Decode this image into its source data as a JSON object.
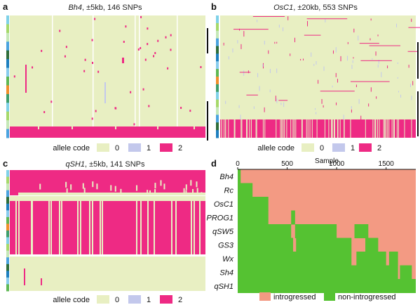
{
  "figure": {
    "colors": {
      "code0": "#e8efc2",
      "code1": "#c3c8ec",
      "code2": "#ee2a84",
      "introgressed": "#f39a83",
      "non_introgressed": "#55c232",
      "background": "#ffffff"
    },
    "panel_a": {
      "label": "a",
      "gene": "Bh4",
      "title_rest": ", ±5kb, 146 SNPs"
    },
    "panel_b": {
      "label": "b",
      "gene": "OsC1",
      "title_rest": ", ±20kb, 553 SNPs"
    },
    "panel_c": {
      "label": "c",
      "gene": "qSH1",
      "title_rest": ", ±5kb, 141 SNPs"
    },
    "panel_d": {
      "label": "d",
      "xlabel": "Sample"
    },
    "allele_legend": {
      "title": "allele code",
      "items": [
        "0",
        "1",
        "2"
      ]
    },
    "introgression_legend": {
      "items": [
        "introgressed",
        "non-introgressed"
      ]
    },
    "sample_ticks": [
      "0",
      "500",
      "1000",
      "1500"
    ]
  },
  "chart_data": [
    {
      "type": "heatmap",
      "title": "Bh4, ±5kb, 146 SNPs",
      "legend_title": "allele code",
      "legend": [
        "0",
        "1",
        "2"
      ],
      "note": "mostly code 0; dense code 2 block at bottom rows"
    },
    {
      "type": "heatmap",
      "title": "OsC1, ±20kb, 553 SNPs",
      "legend_title": "allele code",
      "legend": [
        "0",
        "1",
        "2"
      ],
      "note": "mostly code 0; dense code 2 band at bottom rows"
    },
    {
      "type": "heatmap",
      "title": "qSH1, ±5kb, 141 SNPs",
      "legend_title": "allele code",
      "legend": [
        "0",
        "1",
        "2"
      ],
      "note": "code 2 dominant in upper blocks, code 0 in lower rows"
    },
    {
      "type": "heatmap",
      "xlabel": "Sample",
      "xlim": [
        0,
        1800
      ],
      "xticks": [
        0,
        500,
        1000,
        1500
      ],
      "rows": [
        "Bh4",
        "Rc",
        "OsC1",
        "PROG1",
        "qSW5",
        "GS3",
        "Wx",
        "Sh4",
        "qSH1"
      ],
      "legend": [
        "introgressed",
        "non-introgressed"
      ],
      "non_introgressed_ranges": [
        [
          [
            0,
            30
          ]
        ],
        [
          [
            0,
            150
          ]
        ],
        [
          [
            0,
            310
          ]
        ],
        [
          [
            0,
            310
          ],
          [
            540,
            580
          ]
        ],
        [
          [
            0,
            540
          ],
          [
            580,
            1000
          ],
          [
            1180,
            1320
          ]
        ],
        [
          [
            0,
            560
          ],
          [
            590,
            1150
          ],
          [
            1290,
            1420
          ]
        ],
        [
          [
            0,
            1150
          ],
          [
            1200,
            1500
          ],
          [
            1530,
            1620
          ]
        ],
        [
          [
            0,
            1620
          ],
          [
            1640,
            1760
          ]
        ],
        [
          [
            0,
            1800
          ]
        ]
      ]
    }
  ]
}
